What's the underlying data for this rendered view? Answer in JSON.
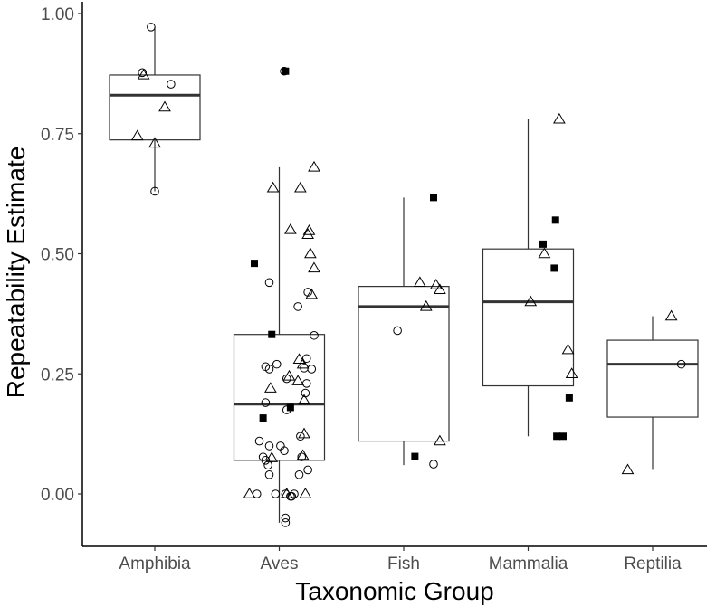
{
  "chart_data": {
    "type": "box",
    "xlabel": "Taxonomic Group",
    "ylabel": "Repeatability Estimate",
    "ylim": [
      -0.14,
      1.04
    ],
    "yticks": [
      0.0,
      0.25,
      0.5,
      0.75,
      1.0
    ],
    "ytick_labels": [
      "0.00",
      "0.25",
      "0.50",
      "0.75",
      "1.00"
    ],
    "categories": [
      "Amphibia",
      "Aves",
      "Fish",
      "Mammalia",
      "Reptilia"
    ],
    "grid": false,
    "point_shapes": {
      "circle": "open circle",
      "triangle": "open triangle",
      "square": "filled square"
    },
    "boxes": [
      {
        "group": "Amphibia",
        "whisker_low": 0.63,
        "q1": 0.737,
        "median": 0.83,
        "q3": 0.872,
        "whisker_high": 0.972
      },
      {
        "group": "Aves",
        "whisker_low": -0.06,
        "q1": 0.07,
        "median": 0.187,
        "q3": 0.332,
        "whisker_high": 0.68
      },
      {
        "group": "Fish",
        "whisker_low": 0.06,
        "q1": 0.11,
        "median": 0.39,
        "q3": 0.432,
        "whisker_high": 0.617
      },
      {
        "group": "Mammalia",
        "whisker_low": 0.12,
        "q1": 0.225,
        "median": 0.4,
        "q3": 0.51,
        "whisker_high": 0.78
      },
      {
        "group": "Reptilia",
        "whisker_low": 0.05,
        "q1": 0.16,
        "median": 0.27,
        "q3": 0.32,
        "whisker_high": 0.37
      }
    ],
    "points": [
      {
        "group": "Amphibia",
        "x": 0.97,
        "y": 0.972,
        "shape": "circle"
      },
      {
        "group": "Amphibia",
        "x": 0.9,
        "y": 0.877,
        "shape": "circle"
      },
      {
        "group": "Amphibia",
        "x": 0.91,
        "y": 0.872,
        "shape": "triangle"
      },
      {
        "group": "Amphibia",
        "x": 1.13,
        "y": 0.853,
        "shape": "circle"
      },
      {
        "group": "Amphibia",
        "x": 1.08,
        "y": 0.805,
        "shape": "triangle"
      },
      {
        "group": "Amphibia",
        "x": 0.86,
        "y": 0.745,
        "shape": "triangle"
      },
      {
        "group": "Amphibia",
        "x": 1.0,
        "y": 0.73,
        "shape": "triangle"
      },
      {
        "group": "Amphibia",
        "x": 1.0,
        "y": 0.63,
        "shape": "circle"
      },
      {
        "group": "Aves",
        "x": 2.04,
        "y": 0.88,
        "shape": "circle"
      },
      {
        "group": "Aves",
        "x": 2.05,
        "y": 0.88,
        "shape": "square"
      },
      {
        "group": "Aves",
        "x": 2.28,
        "y": 0.68,
        "shape": "triangle"
      },
      {
        "group": "Aves",
        "x": 1.95,
        "y": 0.637,
        "shape": "triangle"
      },
      {
        "group": "Aves",
        "x": 2.17,
        "y": 0.637,
        "shape": "triangle"
      },
      {
        "group": "Aves",
        "x": 2.09,
        "y": 0.55,
        "shape": "triangle"
      },
      {
        "group": "Aves",
        "x": 2.24,
        "y": 0.548,
        "shape": "triangle"
      },
      {
        "group": "Aves",
        "x": 2.23,
        "y": 0.54,
        "shape": "triangle"
      },
      {
        "group": "Aves",
        "x": 2.25,
        "y": 0.5,
        "shape": "triangle"
      },
      {
        "group": "Aves",
        "x": 1.8,
        "y": 0.48,
        "shape": "square"
      },
      {
        "group": "Aves",
        "x": 2.28,
        "y": 0.47,
        "shape": "triangle"
      },
      {
        "group": "Aves",
        "x": 1.92,
        "y": 0.44,
        "shape": "circle"
      },
      {
        "group": "Aves",
        "x": 2.23,
        "y": 0.42,
        "shape": "circle"
      },
      {
        "group": "Aves",
        "x": 2.26,
        "y": 0.415,
        "shape": "triangle"
      },
      {
        "group": "Aves",
        "x": 2.15,
        "y": 0.39,
        "shape": "circle"
      },
      {
        "group": "Aves",
        "x": 2.28,
        "y": 0.33,
        "shape": "circle"
      },
      {
        "group": "Aves",
        "x": 1.94,
        "y": 0.332,
        "shape": "square"
      },
      {
        "group": "Aves",
        "x": 2.16,
        "y": 0.28,
        "shape": "triangle"
      },
      {
        "group": "Aves",
        "x": 2.22,
        "y": 0.282,
        "shape": "circle"
      },
      {
        "group": "Aves",
        "x": 2.19,
        "y": 0.27,
        "shape": "triangle"
      },
      {
        "group": "Aves",
        "x": 1.98,
        "y": 0.27,
        "shape": "circle"
      },
      {
        "group": "Aves",
        "x": 1.89,
        "y": 0.265,
        "shape": "circle"
      },
      {
        "group": "Aves",
        "x": 1.92,
        "y": 0.26,
        "shape": "circle"
      },
      {
        "group": "Aves",
        "x": 2.2,
        "y": 0.262,
        "shape": "circle"
      },
      {
        "group": "Aves",
        "x": 2.26,
        "y": 0.26,
        "shape": "circle"
      },
      {
        "group": "Aves",
        "x": 2.08,
        "y": 0.245,
        "shape": "triangle"
      },
      {
        "group": "Aves",
        "x": 2.06,
        "y": 0.24,
        "shape": "circle"
      },
      {
        "group": "Aves",
        "x": 2.15,
        "y": 0.235,
        "shape": "triangle"
      },
      {
        "group": "Aves",
        "x": 2.22,
        "y": 0.23,
        "shape": "circle"
      },
      {
        "group": "Aves",
        "x": 1.93,
        "y": 0.22,
        "shape": "triangle"
      },
      {
        "group": "Aves",
        "x": 2.21,
        "y": 0.21,
        "shape": "circle"
      },
      {
        "group": "Aves",
        "x": 2.2,
        "y": 0.195,
        "shape": "triangle"
      },
      {
        "group": "Aves",
        "x": 1.89,
        "y": 0.19,
        "shape": "circle"
      },
      {
        "group": "Aves",
        "x": 2.09,
        "y": 0.18,
        "shape": "square"
      },
      {
        "group": "Aves",
        "x": 2.06,
        "y": 0.175,
        "shape": "circle"
      },
      {
        "group": "Aves",
        "x": 1.87,
        "y": 0.158,
        "shape": "square"
      },
      {
        "group": "Aves",
        "x": 2.2,
        "y": 0.125,
        "shape": "triangle"
      },
      {
        "group": "Aves",
        "x": 2.17,
        "y": 0.12,
        "shape": "circle"
      },
      {
        "group": "Aves",
        "x": 1.84,
        "y": 0.11,
        "shape": "circle"
      },
      {
        "group": "Aves",
        "x": 2.01,
        "y": 0.1,
        "shape": "circle"
      },
      {
        "group": "Aves",
        "x": 1.92,
        "y": 0.1,
        "shape": "circle"
      },
      {
        "group": "Aves",
        "x": 2.04,
        "y": 0.09,
        "shape": "circle"
      },
      {
        "group": "Aves",
        "x": 2.19,
        "y": 0.08,
        "shape": "triangle"
      },
      {
        "group": "Aves",
        "x": 2.18,
        "y": 0.077,
        "shape": "circle"
      },
      {
        "group": "Aves",
        "x": 1.87,
        "y": 0.077,
        "shape": "circle"
      },
      {
        "group": "Aves",
        "x": 1.89,
        "y": 0.07,
        "shape": "circle"
      },
      {
        "group": "Aves",
        "x": 1.94,
        "y": 0.075,
        "shape": "triangle"
      },
      {
        "group": "Aves",
        "x": 1.91,
        "y": 0.06,
        "shape": "circle"
      },
      {
        "group": "Aves",
        "x": 2.23,
        "y": 0.05,
        "shape": "circle"
      },
      {
        "group": "Aves",
        "x": 1.92,
        "y": 0.04,
        "shape": "circle"
      },
      {
        "group": "Aves",
        "x": 2.16,
        "y": 0.04,
        "shape": "circle"
      },
      {
        "group": "Aves",
        "x": 1.76,
        "y": 0.0,
        "shape": "triangle"
      },
      {
        "group": "Aves",
        "x": 1.82,
        "y": 0.0,
        "shape": "circle"
      },
      {
        "group": "Aves",
        "x": 1.97,
        "y": 0.0,
        "shape": "circle"
      },
      {
        "group": "Aves",
        "x": 2.05,
        "y": 0.0,
        "shape": "circle"
      },
      {
        "group": "Aves",
        "x": 2.06,
        "y": 0.0,
        "shape": "triangle"
      },
      {
        "group": "Aves",
        "x": 2.09,
        "y": -0.005,
        "shape": "circle"
      },
      {
        "group": "Aves",
        "x": 2.1,
        "y": -0.005,
        "shape": "circle"
      },
      {
        "group": "Aves",
        "x": 2.12,
        "y": 0.0,
        "shape": "circle"
      },
      {
        "group": "Aves",
        "x": 2.21,
        "y": 0.0,
        "shape": "triangle"
      },
      {
        "group": "Aves",
        "x": 2.05,
        "y": -0.05,
        "shape": "circle"
      },
      {
        "group": "Aves",
        "x": 2.05,
        "y": -0.06,
        "shape": "circle"
      },
      {
        "group": "Fish",
        "x": 3.24,
        "y": 0.617,
        "shape": "square"
      },
      {
        "group": "Fish",
        "x": 3.13,
        "y": 0.44,
        "shape": "triangle"
      },
      {
        "group": "Fish",
        "x": 3.26,
        "y": 0.435,
        "shape": "triangle"
      },
      {
        "group": "Fish",
        "x": 3.29,
        "y": 0.425,
        "shape": "triangle"
      },
      {
        "group": "Fish",
        "x": 3.18,
        "y": 0.39,
        "shape": "triangle"
      },
      {
        "group": "Fish",
        "x": 2.95,
        "y": 0.34,
        "shape": "circle"
      },
      {
        "group": "Fish",
        "x": 3.29,
        "y": 0.11,
        "shape": "triangle"
      },
      {
        "group": "Fish",
        "x": 3.09,
        "y": 0.078,
        "shape": "square"
      },
      {
        "group": "Fish",
        "x": 3.24,
        "y": 0.062,
        "shape": "circle"
      },
      {
        "group": "Mammalia",
        "x": 4.25,
        "y": 0.78,
        "shape": "triangle"
      },
      {
        "group": "Mammalia",
        "x": 4.22,
        "y": 0.57,
        "shape": "square"
      },
      {
        "group": "Mammalia",
        "x": 4.12,
        "y": 0.52,
        "shape": "square"
      },
      {
        "group": "Mammalia",
        "x": 4.13,
        "y": 0.5,
        "shape": "triangle"
      },
      {
        "group": "Mammalia",
        "x": 4.21,
        "y": 0.47,
        "shape": "square"
      },
      {
        "group": "Mammalia",
        "x": 4.02,
        "y": 0.4,
        "shape": "triangle"
      },
      {
        "group": "Mammalia",
        "x": 4.32,
        "y": 0.3,
        "shape": "triangle"
      },
      {
        "group": "Mammalia",
        "x": 4.35,
        "y": 0.25,
        "shape": "triangle"
      },
      {
        "group": "Mammalia",
        "x": 4.33,
        "y": 0.2,
        "shape": "square"
      },
      {
        "group": "Mammalia",
        "x": 4.23,
        "y": 0.12,
        "shape": "square"
      },
      {
        "group": "Mammalia",
        "x": 4.28,
        "y": 0.12,
        "shape": "square"
      },
      {
        "group": "Reptilia",
        "x": 5.15,
        "y": 0.37,
        "shape": "triangle"
      },
      {
        "group": "Reptilia",
        "x": 5.23,
        "y": 0.27,
        "shape": "circle"
      },
      {
        "group": "Reptilia",
        "x": 4.8,
        "y": 0.05,
        "shape": "triangle"
      }
    ]
  }
}
